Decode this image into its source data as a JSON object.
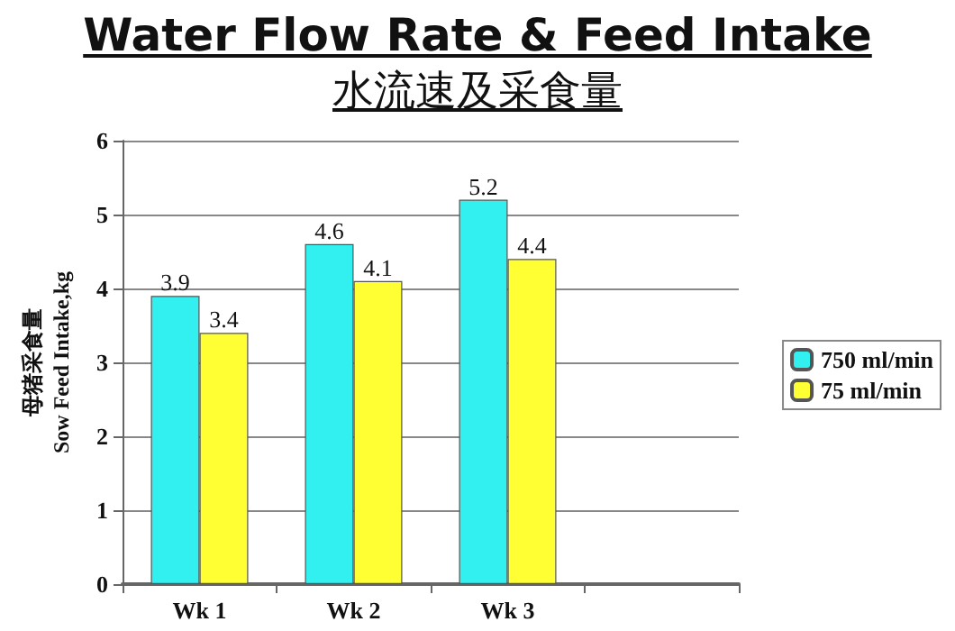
{
  "chart_data": {
    "type": "bar",
    "title": "Water Flow Rate & Feed Intake",
    "subtitle": "水流速及采食量",
    "ylabel": "母猪采食量\nSow Feed Intake,kg",
    "categories": [
      "Wk 1",
      "Wk 2",
      "Wk 3",
      null
    ],
    "series": [
      {
        "name": "750 ml/min",
        "color": "#33f0f0",
        "values": [
          3.9,
          4.6,
          5.2,
          null
        ]
      },
      {
        "name": "75 ml/min",
        "color": "#ffff33",
        "values": [
          3.4,
          4.1,
          4.4,
          null
        ]
      }
    ],
    "ylim": [
      0,
      6
    ],
    "yticks": [
      0,
      1,
      2,
      3,
      4,
      5,
      6
    ],
    "grid": "y",
    "legend": "right",
    "data_labels": true
  }
}
